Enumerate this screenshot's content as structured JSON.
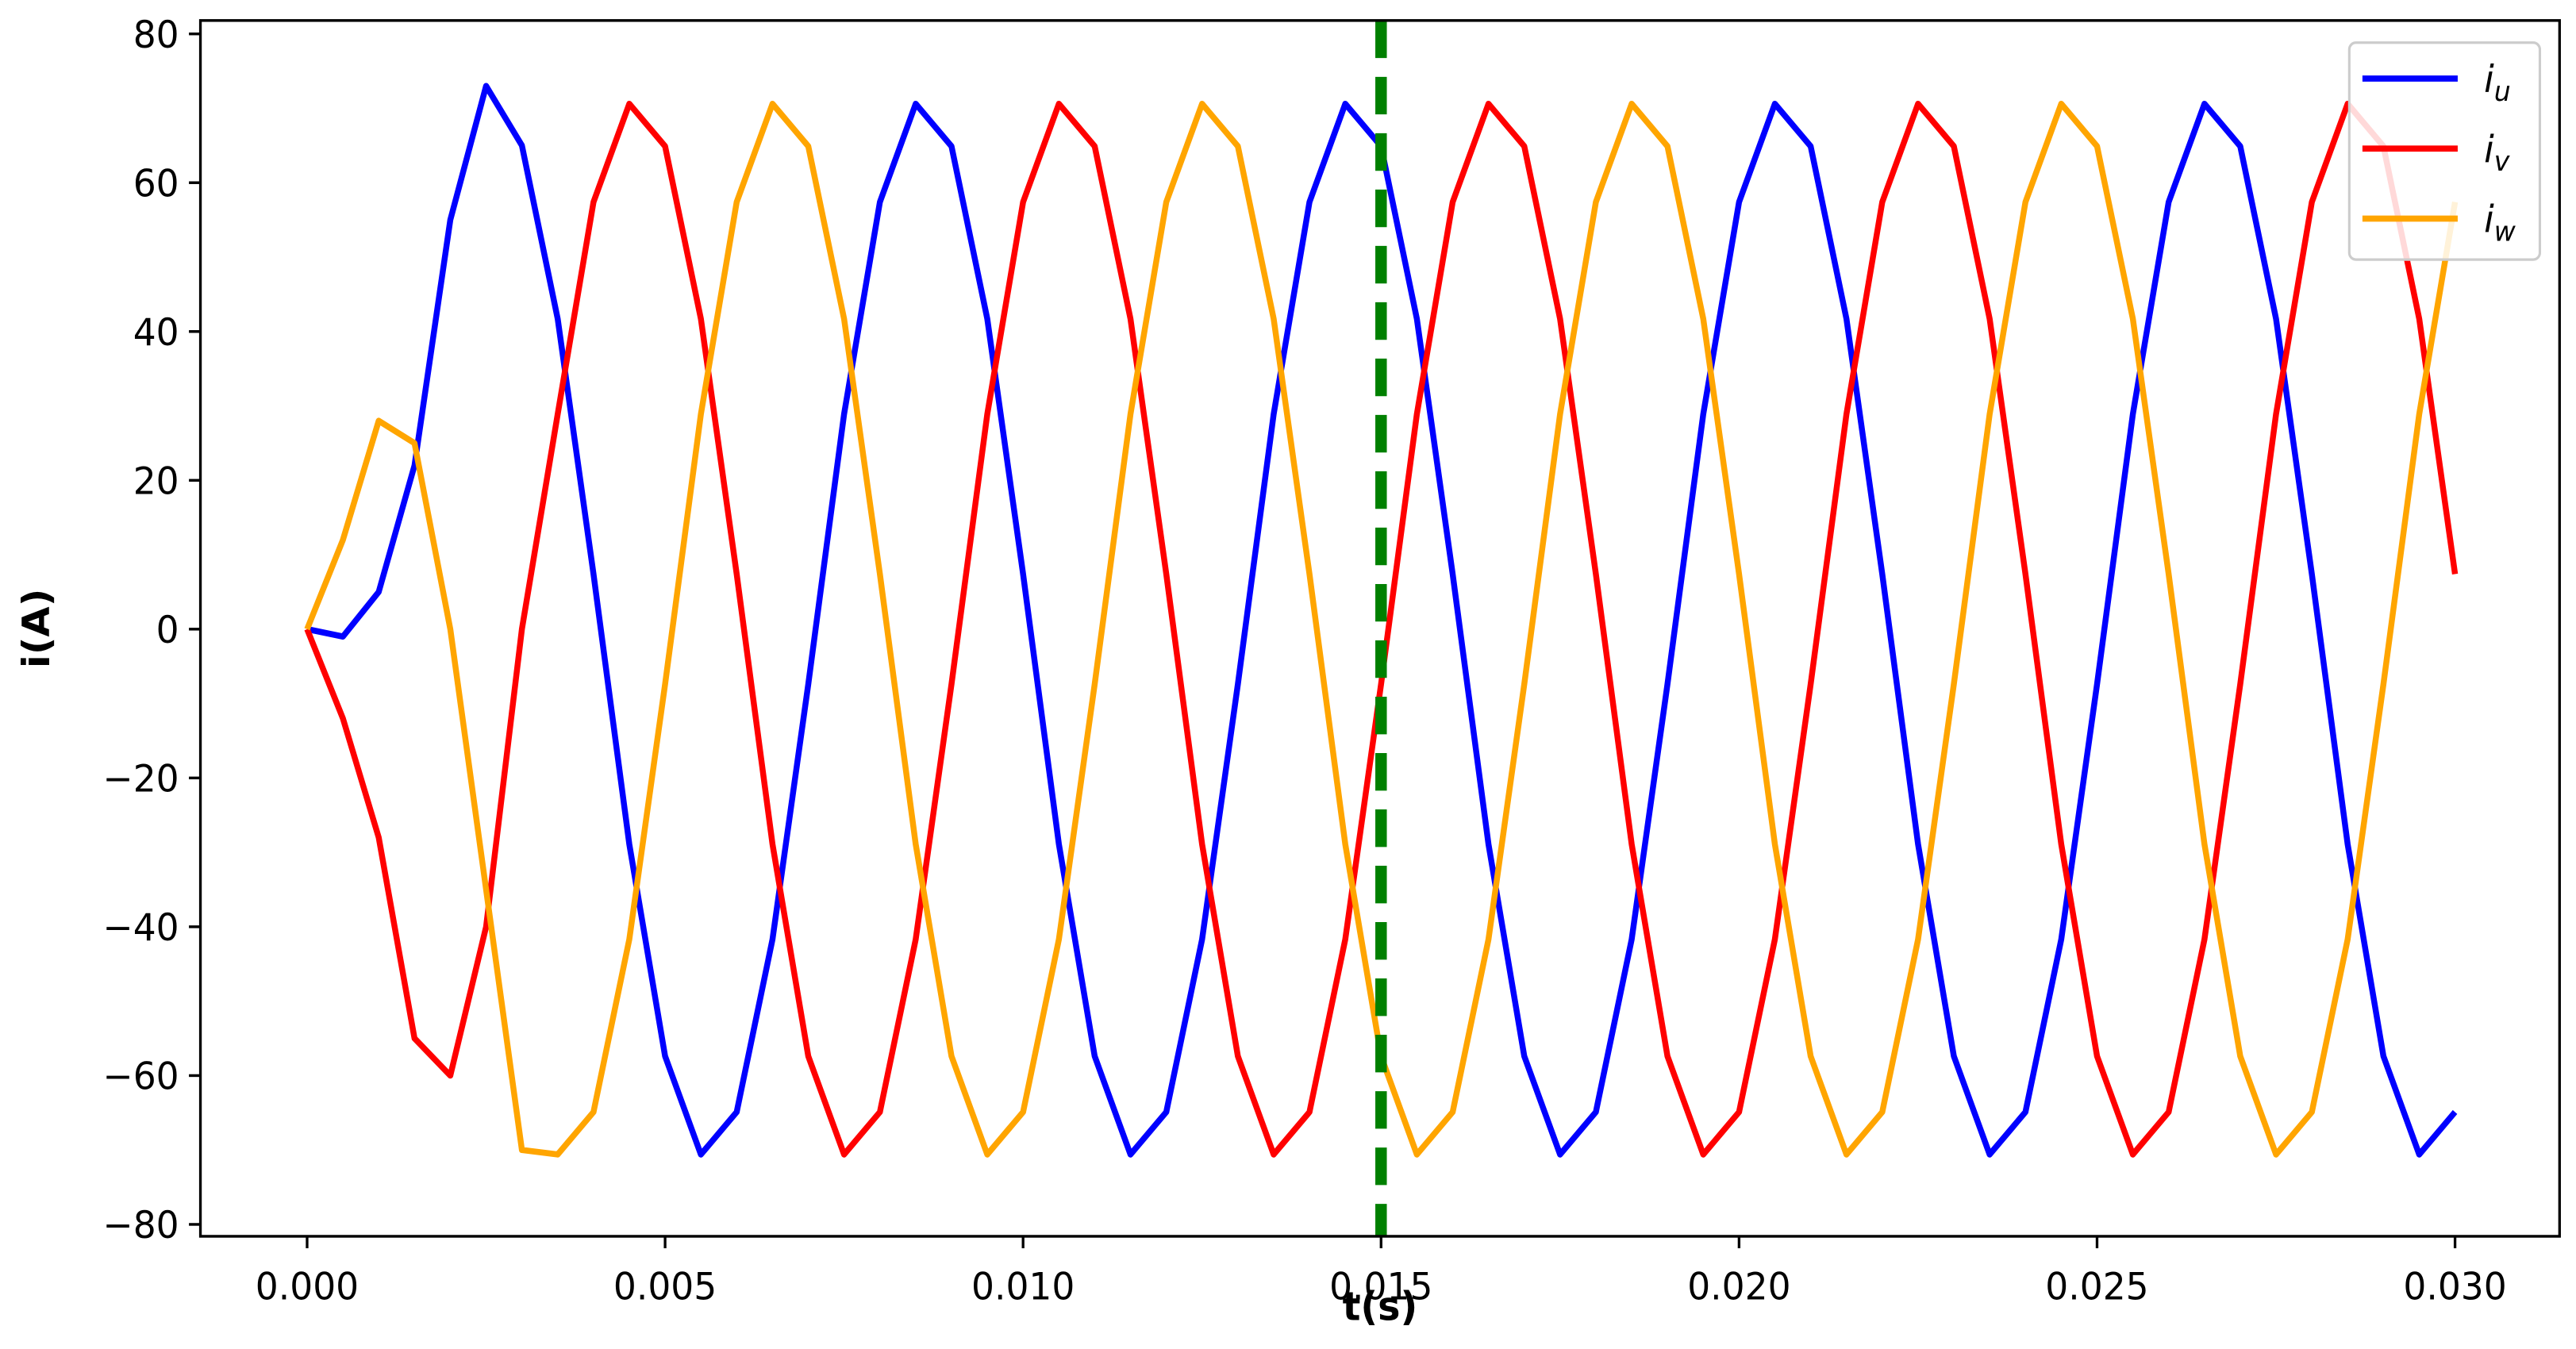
{
  "chart_data": {
    "type": "line",
    "xlabel": "t(s)",
    "ylabel": "i(A)",
    "x": [
      0,
      0.0005,
      0.001,
      0.0015,
      0.002,
      0.0025,
      0.003,
      0.0035,
      0.004,
      0.0045,
      0.005,
      0.0055,
      0.006,
      0.0065,
      0.007,
      0.0075,
      0.008,
      0.0085,
      0.009,
      0.0095,
      0.01,
      0.0105,
      0.011,
      0.0115,
      0.012,
      0.0125,
      0.013,
      0.0135,
      0.014,
      0.0145,
      0.015,
      0.0155,
      0.016,
      0.0165,
      0.017,
      0.0175,
      0.018,
      0.0185,
      0.019,
      0.0195,
      0.02,
      0.0205,
      0.021,
      0.0215,
      0.022,
      0.0225,
      0.023,
      0.0235,
      0.024,
      0.0245,
      0.025,
      0.0255,
      0.026,
      0.0265,
      0.027,
      0.0275,
      0.028,
      0.0285,
      0.029,
      0.0295,
      0.03
    ],
    "series": [
      {
        "name": "iu",
        "color": "#0000ff",
        "values": [
          0,
          -1,
          5,
          22,
          55,
          73,
          65,
          41.7,
          7.4,
          -28.9,
          -57.4,
          -70.6,
          -64.9,
          -41.7,
          -7.4,
          28.9,
          57.4,
          70.6,
          64.9,
          41.7,
          7.4,
          -28.9,
          -57.4,
          -70.6,
          -64.9,
          -41.7,
          -7.4,
          28.9,
          57.4,
          70.6,
          64.9,
          41.7,
          7.4,
          -28.9,
          -57.4,
          -70.6,
          -64.9,
          -41.7,
          -7.4,
          28.9,
          57.4,
          70.6,
          64.9,
          41.7,
          7.4,
          -28.9,
          -57.4,
          -70.6,
          -64.9,
          -41.7,
          -7.4,
          28.9,
          57.4,
          70.6,
          64.9,
          41.7,
          7.4,
          -28.9,
          -57.4,
          -70.6,
          -64.9
        ]
      },
      {
        "name": "iv",
        "color": "#ff0000",
        "values": [
          0,
          -12,
          -28,
          -55,
          -60,
          -40,
          0,
          28.9,
          57.4,
          70.6,
          64.9,
          41.7,
          7.4,
          -28.9,
          -57.4,
          -70.6,
          -64.9,
          -41.7,
          -7.4,
          28.9,
          57.4,
          70.6,
          64.9,
          41.7,
          7.4,
          -28.9,
          -57.4,
          -70.6,
          -64.9,
          -41.7,
          -7.4,
          28.9,
          57.4,
          70.6,
          64.9,
          41.7,
          7.4,
          -28.9,
          -57.4,
          -70.6,
          -64.9,
          -41.7,
          -7.4,
          28.9,
          57.4,
          70.6,
          64.9,
          41.7,
          7.4,
          -28.9,
          -57.4,
          -70.6,
          -64.9,
          -41.7,
          -7.4,
          28.9,
          57.4,
          70.6,
          64.9,
          41.7,
          7.4
        ]
      },
      {
        "name": "iw",
        "color": "#ffa500",
        "values": [
          0,
          12,
          28,
          25,
          0,
          -35,
          -70,
          -70.6,
          -64.9,
          -41.7,
          -7.4,
          28.9,
          57.4,
          70.6,
          64.9,
          41.7,
          7.4,
          -28.9,
          -57.4,
          -70.6,
          -64.9,
          -41.7,
          -7.4,
          28.9,
          57.4,
          70.6,
          64.9,
          41.7,
          7.4,
          -28.9,
          -57.4,
          -70.6,
          -64.9,
          -41.7,
          -7.4,
          28.9,
          57.4,
          70.6,
          64.9,
          41.7,
          7.4,
          -28.9,
          -57.4,
          -70.6,
          -64.9,
          -41.7,
          -7.4,
          28.9,
          57.4,
          70.6,
          64.9,
          41.7,
          7.4,
          -28.9,
          -57.4,
          -70.6,
          -64.9,
          -41.7,
          -7.4,
          28.9,
          57.4
        ]
      }
    ],
    "vlines": [
      {
        "x": 0.015,
        "color": "#008000"
      }
    ],
    "xlim": [
      -0.00149,
      0.03146
    ],
    "ylim": [
      -81.6,
      81.8
    ],
    "xticks": [
      {
        "value": 0,
        "label": "0.000"
      },
      {
        "value": 0.005,
        "label": "0.005"
      },
      {
        "value": 0.01,
        "label": "0.010"
      },
      {
        "value": 0.015,
        "label": "0.015"
      },
      {
        "value": 0.02,
        "label": "0.020"
      },
      {
        "value": 0.025,
        "label": "0.025"
      },
      {
        "value": 0.03,
        "label": "0.030"
      }
    ],
    "yticks": [
      {
        "value": -80,
        "label": "−80"
      },
      {
        "value": -60,
        "label": "−60"
      },
      {
        "value": -40,
        "label": "−40"
      },
      {
        "value": -20,
        "label": "−20"
      },
      0,
      20,
      40,
      60,
      80
    ],
    "legend": "upper right",
    "grid": false
  }
}
